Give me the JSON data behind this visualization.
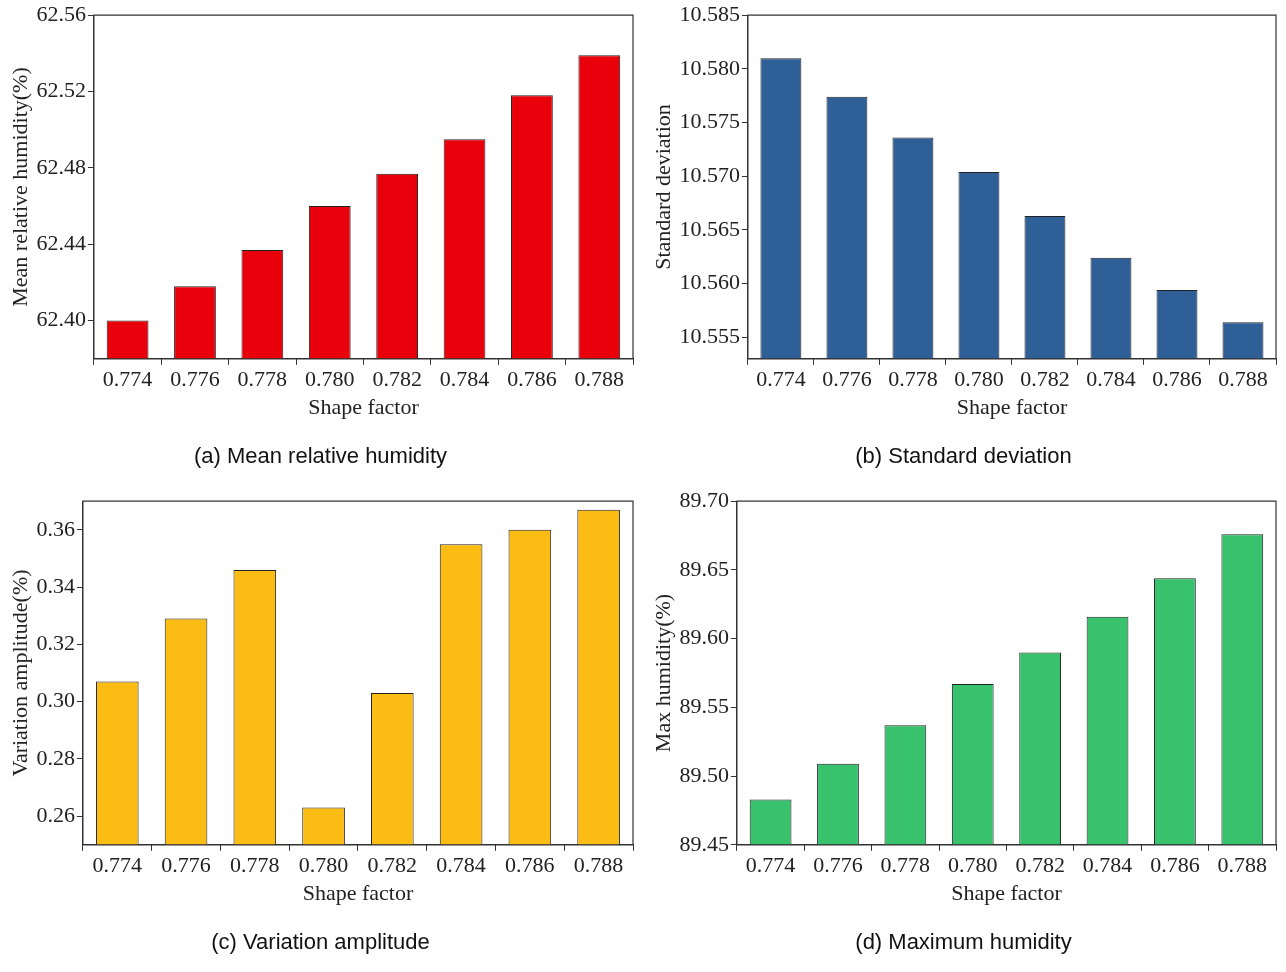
{
  "chart_data": [
    {
      "type": "bar",
      "title": "(a) Mean relative humidity",
      "xlabel": "Shape factor",
      "ylabel": "Mean relative humidity(%)",
      "categories": [
        "0.774",
        "0.776",
        "0.778",
        "0.780",
        "0.782",
        "0.784",
        "0.786",
        "0.788"
      ],
      "color": "#e8000b",
      "values": [
        62.4,
        62.418,
        62.437,
        62.46,
        62.477,
        62.495,
        62.518,
        62.539
      ],
      "ylim": [
        62.38,
        62.56
      ],
      "yticks": [
        {
          "value": 62.4,
          "label": "62.40"
        },
        62.44,
        62.48,
        62.52,
        62.56
      ]
    },
    {
      "type": "bar",
      "title": "(b) Standard deviation",
      "xlabel": "Shape factor",
      "ylabel": "Standard deviation",
      "categories": [
        "0.774",
        "0.776",
        "0.778",
        "0.780",
        "0.782",
        "0.784",
        "0.786",
        "0.788"
      ],
      "color": "#2e5f97",
      "values": [
        10.581,
        10.5774,
        10.5736,
        10.5704,
        10.5663,
        10.5624,
        10.5594,
        10.5564
      ],
      "ylim": [
        10.553,
        10.585
      ],
      "yticks": [
        10.555,
        {
          "value": 10.56,
          "label": "10.560"
        },
        10.565,
        {
          "value": 10.57,
          "label": "10.570"
        },
        10.575,
        {
          "value": 10.58,
          "label": "10.580"
        },
        10.585
      ]
    },
    {
      "type": "bar",
      "title": "(c) Variation amplitude",
      "xlabel": "Shape factor",
      "ylabel": "Variation amplitude(%)",
      "categories": [
        "0.774",
        "0.776",
        "0.778",
        "0.780",
        "0.782",
        "0.784",
        "0.786",
        "0.788"
      ],
      "color": "#fbbc14",
      "values": [
        0.307,
        0.329,
        0.346,
        0.263,
        0.303,
        0.355,
        0.36,
        0.367
      ],
      "ylim": [
        0.25,
        0.37
      ],
      "yticks": [
        0.26,
        0.28,
        {
          "value": 0.3,
          "label": "0.30"
        },
        0.32,
        0.34,
        0.36
      ]
    },
    {
      "type": "bar",
      "title": "(d) Maximum humidity",
      "xlabel": "Shape factor",
      "ylabel": "Max humidity(%)",
      "categories": [
        "0.774",
        "0.776",
        "0.778",
        "0.780",
        "0.782",
        "0.784",
        "0.786",
        "0.788"
      ],
      "color": "#38c26d",
      "values": [
        89.483,
        89.509,
        89.537,
        89.567,
        89.59,
        89.616,
        89.644,
        89.676
      ],
      "ylim": [
        89.45,
        89.7
      ],
      "yticks": [
        89.45,
        {
          "value": 89.5,
          "label": "89.50"
        },
        89.55,
        {
          "value": 89.6,
          "label": "89.60"
        },
        89.65,
        {
          "value": 89.7,
          "label": "89.70"
        }
      ]
    }
  ]
}
